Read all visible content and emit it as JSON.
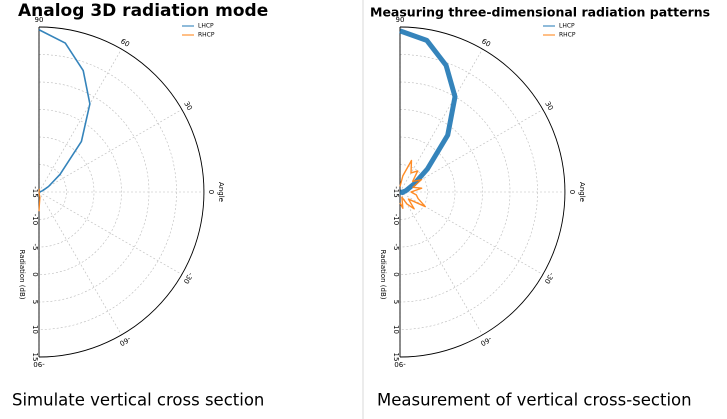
{
  "chart_data": [
    {
      "type": "polar",
      "title": "Analog 3D radiation mode",
      "caption": "Simulate vertical cross section",
      "x_label": "Angle",
      "r_label": "Radiation (dB)",
      "xlim": [
        -90,
        90
      ],
      "xticks": [
        90,
        60,
        30,
        0,
        -30,
        -60,
        -90
      ],
      "rlim": [
        -15,
        15
      ],
      "rticks": [
        -15,
        -10,
        -5,
        0,
        5,
        10,
        15
      ],
      "grid": true,
      "legend": "upper right",
      "x": [
        -90,
        -80,
        -70,
        -60,
        -50,
        -40,
        -30,
        -20,
        -10,
        0,
        10,
        20,
        30,
        40,
        50,
        60,
        70,
        80,
        90
      ],
      "series": [
        {
          "name": "LHCP",
          "color": "#1f77b4",
          "values": [
            -15,
            -15,
            -15,
            -15,
            -15,
            -15,
            -15,
            -15,
            -15,
            -15,
            -14.8,
            -14.3,
            -13,
            -10,
            -3,
            3.5,
            8.5,
            12.5,
            14.5
          ]
        },
        {
          "name": "RHCP",
          "color": "#ff7f0e",
          "values": [
            -11.5,
            -14,
            -15,
            -15,
            -15,
            -15,
            -15,
            -15,
            -15,
            -15,
            -15,
            -15,
            -15,
            -15,
            -15,
            -15,
            -15,
            -14.5,
            -15
          ]
        }
      ]
    },
    {
      "type": "polar",
      "title": "Measuring three-dimensional radiation patterns",
      "caption": "Measurement of vertical cross-section",
      "x_label": "Angle",
      "r_label": "Radiation (dB)",
      "xlim": [
        -90,
        90
      ],
      "xticks": [
        90,
        60,
        30,
        0,
        -30,
        -60,
        -90
      ],
      "rlim": [
        -15,
        15
      ],
      "rticks": [
        -15,
        -10,
        -5,
        0,
        5,
        10,
        15
      ],
      "grid": true,
      "legend": "upper right",
      "x": [
        -90,
        -80,
        -70,
        -60,
        -50,
        -40,
        -30,
        -20,
        -10,
        0,
        10,
        20,
        30,
        40,
        50,
        60,
        70,
        80,
        90
      ],
      "series": [
        {
          "name": "LHCP",
          "color": "#1f77b4",
          "values": [
            -15,
            -15,
            -15,
            -15,
            -15,
            -15,
            -15,
            -15,
            -14.5,
            -14.5,
            -14,
            -13.5,
            -12,
            -8.5,
            -1.5,
            5,
            9.5,
            13,
            14.3
          ]
        },
        {
          "name": "RHCP",
          "color": "#ff7f0e",
          "values": [
            -13,
            -12,
            -14,
            -12.5,
            -11,
            -13,
            -9.7,
            -11.5,
            -12,
            -13,
            -11,
            -12.5,
            -10.5,
            -12,
            -10,
            -11,
            -8.9,
            -12,
            -14
          ]
        }
      ]
    }
  ]
}
